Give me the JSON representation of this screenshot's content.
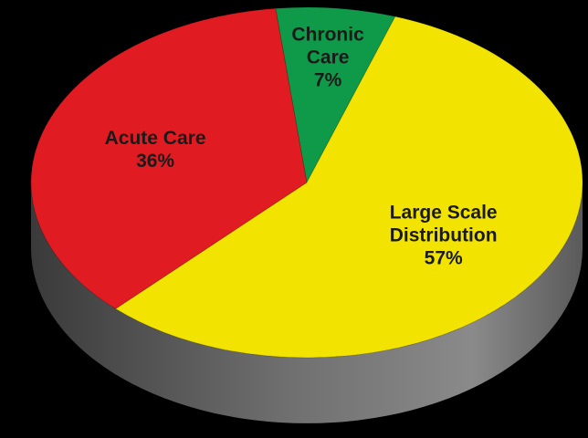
{
  "chart_data": {
    "type": "pie",
    "categories": [
      "Chronic Care",
      "Large Scale Distribution",
      "Acute Care"
    ],
    "values": [
      7,
      57,
      36
    ],
    "value_labels": [
      "7%",
      "57%",
      "36%"
    ],
    "colors": [
      "#0f9a4a",
      "#f2e400",
      "#e11b22"
    ]
  }
}
